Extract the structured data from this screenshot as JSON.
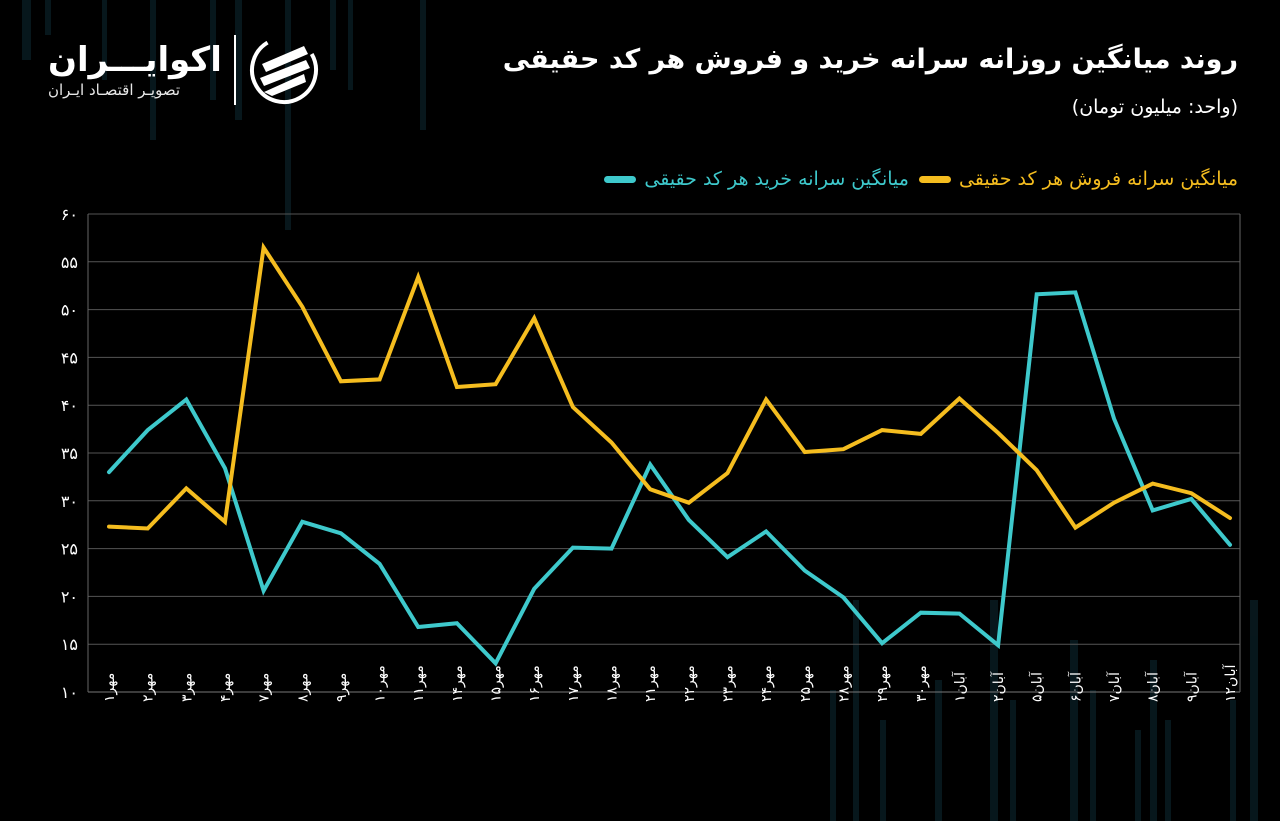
{
  "header": {
    "title": "روند میانگین روزانه سرانه خرید و فروش هر کد حقیقی",
    "subtitle": "(واحد: میلیون تومان)"
  },
  "logo": {
    "name": "اکوایـــران",
    "tagline": "تصویـر اقتصـاد ایـران",
    "icon": "stripes-globe-icon"
  },
  "colors": {
    "background": "#000000",
    "buy": "#3ec9cc",
    "sell": "#f5bd1f",
    "grid": "#555555",
    "text": "#ffffff"
  },
  "legend": [
    {
      "label": "میانگین سرانه خرید هر کد حقیقی",
      "color": "#3ec9cc"
    },
    {
      "label": "میانگین سرانه فروش هر کد حقیقی",
      "color": "#f5bd1f"
    }
  ],
  "chart_data": {
    "type": "line",
    "title": "روند میانگین روزانه سرانه خرید و فروش هر کد حقیقی",
    "subtitle": "(واحد: میلیون تومان)",
    "xlabel": "",
    "ylabel": "میلیون تومان",
    "ylim": [
      10,
      60
    ],
    "yticks": [
      10,
      15,
      20,
      25,
      30,
      35,
      40,
      45,
      50,
      55,
      60
    ],
    "ytick_labels": [
      "۱۰",
      "۱۵",
      "۲۰",
      "۲۵",
      "۳۰",
      "۳۵",
      "۴۰",
      "۴۵",
      "۵۰",
      "۵۵",
      "۶۰"
    ],
    "grid": true,
    "legend_position": "top-right",
    "categories": [
      "مهر۱",
      "مهر۲",
      "مهر۳",
      "مهر۴",
      "مهر۷",
      "مهر۸",
      "مهر۹",
      "مهر۱۰",
      "مهر۱۱",
      "مهر۱۴",
      "مهر۱۵",
      "مهر۱۶",
      "مهر۱۷",
      "مهر۱۸",
      "مهر۲۱",
      "مهر۲۲",
      "مهر۲۳",
      "مهر۲۴",
      "مهر۲۵",
      "مهر۲۸",
      "مهر۲۹",
      "مهر۳۰",
      "آبان۱",
      "آبان۲",
      "آبان۵",
      "آبان۶",
      "آبان۷",
      "آبان۸",
      "آبان۹",
      "آبان۱۲"
    ],
    "series": [
      {
        "name": "میانگین سرانه خرید هر کد حقیقی",
        "color": "#3ec9cc",
        "values": [
          33.0,
          37.4,
          40.6,
          33.4,
          20.6,
          27.8,
          26.6,
          23.4,
          16.8,
          17.2,
          13.0,
          20.8,
          25.1,
          25.0,
          33.8,
          28.0,
          24.1,
          26.8,
          22.7,
          19.9,
          15.1,
          18.3,
          18.2,
          14.9,
          51.6,
          51.8,
          38.6,
          29.0,
          30.2,
          25.4
        ]
      },
      {
        "name": "میانگین سرانه فروش هر کد حقیقی",
        "color": "#f5bd1f",
        "values": [
          27.3,
          27.1,
          31.3,
          27.8,
          56.5,
          50.3,
          42.5,
          42.7,
          53.4,
          41.9,
          42.2,
          49.1,
          39.8,
          36.1,
          31.2,
          29.8,
          32.9,
          40.6,
          35.1,
          35.4,
          37.4,
          37.0,
          40.7,
          37.1,
          33.2,
          27.2,
          29.8,
          31.8,
          30.8,
          28.2
        ]
      }
    ]
  }
}
